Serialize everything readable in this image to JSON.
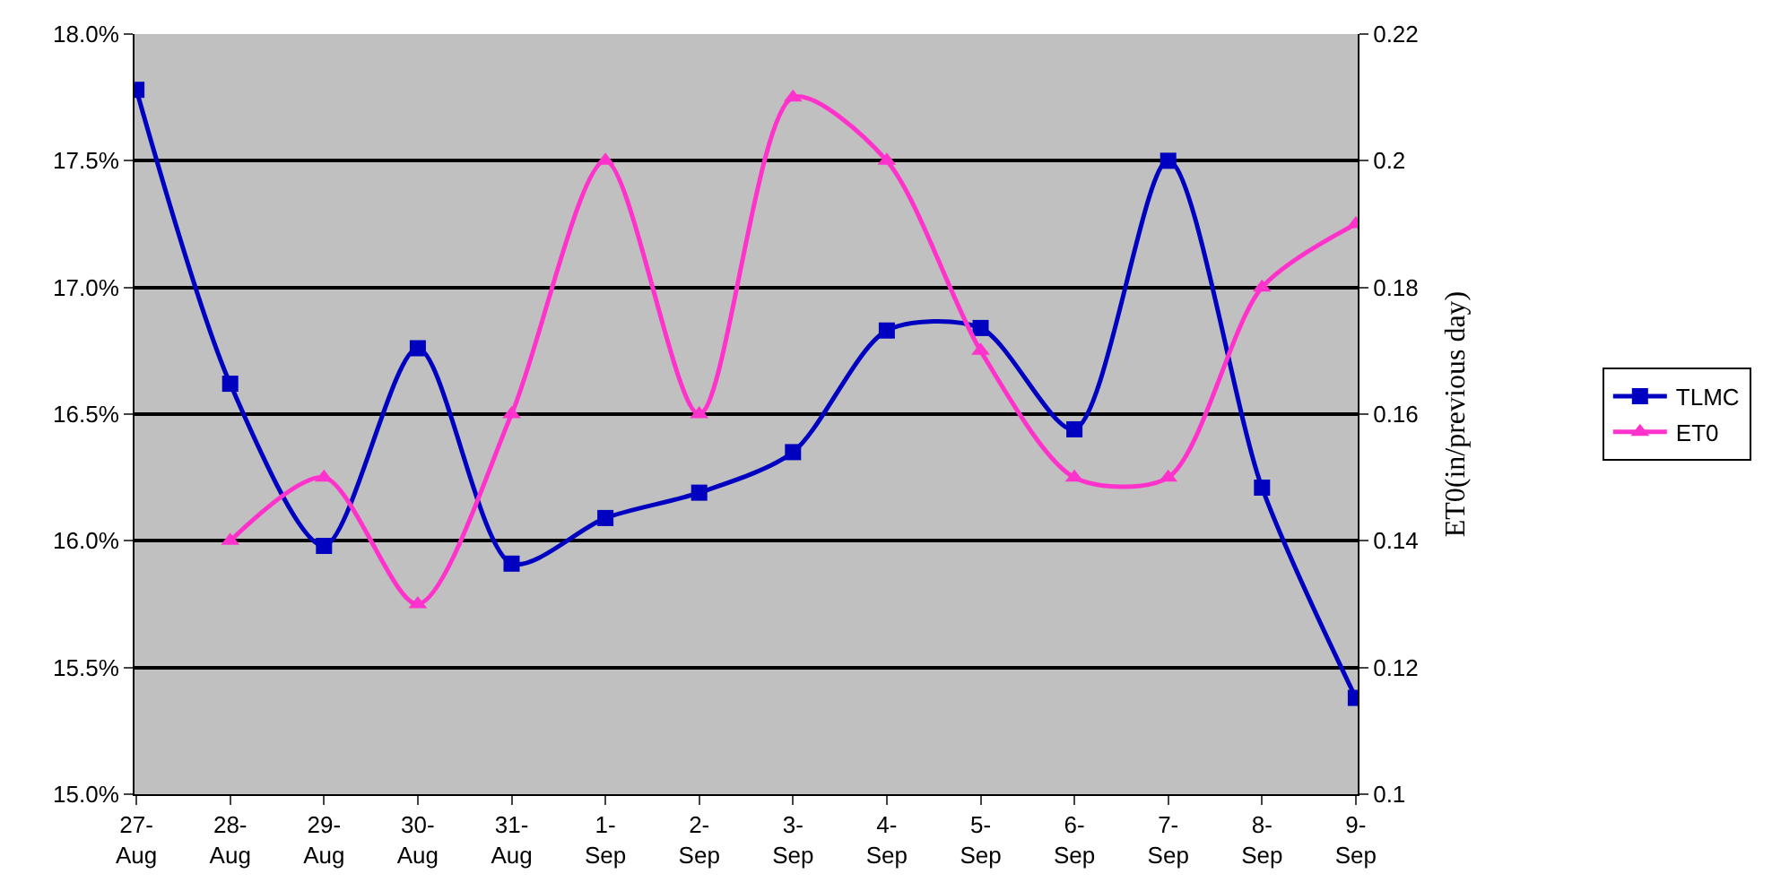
{
  "chart_data": {
    "type": "line",
    "categories": [
      "27-Aug",
      "28-Aug",
      "29-Aug",
      "30-Aug",
      "31-Aug",
      "1-Sep",
      "2-Sep",
      "3-Sep",
      "4-Sep",
      "5-Sep",
      "6-Sep",
      "7-Sep",
      "8-Sep",
      "9-Sep"
    ],
    "series": [
      {
        "name": "TLMC",
        "color": "#0000c0",
        "marker": "square",
        "values": [
          17.78,
          16.62,
          15.98,
          16.76,
          15.91,
          16.09,
          16.19,
          16.35,
          16.83,
          16.84,
          16.44,
          17.5,
          16.21,
          15.38
        ]
      },
      {
        "name": "ET0",
        "color": "#ff33cc",
        "marker": "triangle",
        "axis": "y2",
        "values": [
          null,
          0.14,
          0.15,
          0.13,
          0.16,
          0.2,
          0.16,
          0.21,
          0.2,
          0.17,
          0.15,
          0.15,
          0.18,
          0.19
        ]
      }
    ],
    "y2label": "ET0(in/previous day)",
    "ylim": [
      15,
      18
    ],
    "yticks": [
      {
        "value": 15,
        "label": "15.0%"
      },
      {
        "value": 15.5,
        "label": "15.5%"
      },
      {
        "value": 16,
        "label": "16.0%"
      },
      {
        "value": 16.5,
        "label": "16.5%"
      },
      {
        "value": 17,
        "label": "17.0%"
      },
      {
        "value": 17.5,
        "label": "17.5%"
      },
      {
        "value": 18,
        "label": "18.0%"
      }
    ],
    "y2lim": [
      0.1,
      0.22
    ],
    "y2ticks": [
      0.1,
      0.12,
      0.14,
      0.16,
      0.18,
      0.2,
      0.22
    ],
    "grid": "y",
    "legend": "right"
  }
}
